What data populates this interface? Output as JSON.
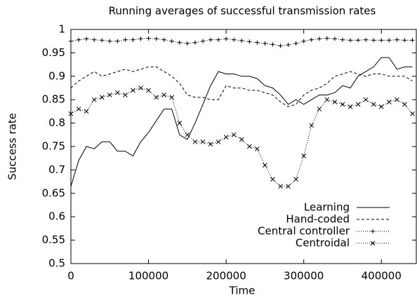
{
  "chart_data": {
    "type": "line",
    "title": "Running averages of successful transmission rates",
    "x_label": "Time",
    "y_label": "Success rate",
    "xlim": [
      0,
      445000
    ],
    "ylim": [
      0.5,
      1
    ],
    "xticks": [
      0,
      100000,
      200000,
      300000,
      400000
    ],
    "yticks": [
      0.5,
      0.55,
      0.6,
      0.65,
      0.7,
      0.75,
      0.8,
      0.85,
      0.9,
      0.95,
      1
    ],
    "legend": "lower right",
    "x": [
      0,
      10000,
      20000,
      30000,
      40000,
      50000,
      60000,
      70000,
      80000,
      90000,
      100000,
      110000,
      120000,
      130000,
      140000,
      150000,
      160000,
      170000,
      180000,
      190000,
      200000,
      210000,
      220000,
      230000,
      240000,
      250000,
      260000,
      270000,
      280000,
      290000,
      300000,
      310000,
      320000,
      330000,
      340000,
      350000,
      360000,
      370000,
      380000,
      390000,
      400000,
      410000,
      420000,
      430000,
      440000
    ],
    "series": [
      {
        "name": "Learning",
        "color": "#000000",
        "dash": "none",
        "marker": "none",
        "values": [
          0.665,
          0.72,
          0.75,
          0.745,
          0.76,
          0.76,
          0.74,
          0.74,
          0.73,
          0.76,
          0.78,
          0.805,
          0.83,
          0.83,
          0.775,
          0.765,
          0.8,
          0.84,
          0.88,
          0.91,
          0.905,
          0.905,
          0.9,
          0.9,
          0.895,
          0.88,
          0.875,
          0.86,
          0.84,
          0.85,
          0.84,
          0.85,
          0.86,
          0.86,
          0.865,
          0.88,
          0.875,
          0.9,
          0.91,
          0.92,
          0.94,
          0.94,
          0.915,
          0.92,
          0.92
        ]
      },
      {
        "name": "Hand-coded",
        "color": "#000000",
        "dash": "4 3",
        "marker": "none",
        "values": [
          0.875,
          0.89,
          0.9,
          0.91,
          0.9,
          0.905,
          0.91,
          0.915,
          0.91,
          0.915,
          0.92,
          0.92,
          0.91,
          0.9,
          0.885,
          0.86,
          0.855,
          0.855,
          0.85,
          0.85,
          0.88,
          0.875,
          0.875,
          0.87,
          0.87,
          0.865,
          0.86,
          0.845,
          0.835,
          0.84,
          0.86,
          0.87,
          0.875,
          0.885,
          0.9,
          0.905,
          0.91,
          0.905,
          0.9,
          0.905,
          0.905,
          0.9,
          0.9,
          0.9,
          0.89
        ]
      },
      {
        "name": "Central controller",
        "color": "#000000",
        "dash": "1 2",
        "marker": "plus",
        "values": [
          0.975,
          0.978,
          0.98,
          0.978,
          0.977,
          0.975,
          0.975,
          0.978,
          0.978,
          0.98,
          0.981,
          0.98,
          0.978,
          0.975,
          0.972,
          0.97,
          0.972,
          0.975,
          0.978,
          0.978,
          0.98,
          0.978,
          0.976,
          0.974,
          0.972,
          0.97,
          0.968,
          0.965,
          0.967,
          0.97,
          0.975,
          0.978,
          0.98,
          0.981,
          0.98,
          0.978,
          0.977,
          0.977,
          0.978,
          0.977,
          0.977,
          0.977,
          0.978,
          0.977,
          0.977
        ]
      },
      {
        "name": "Centroidal",
        "color": "#000000",
        "dash": "1 2",
        "marker": "cross",
        "values": [
          0.82,
          0.83,
          0.825,
          0.85,
          0.855,
          0.86,
          0.865,
          0.86,
          0.87,
          0.875,
          0.87,
          0.855,
          0.86,
          0.855,
          0.8,
          0.775,
          0.76,
          0.76,
          0.755,
          0.76,
          0.77,
          0.775,
          0.765,
          0.75,
          0.745,
          0.71,
          0.68,
          0.665,
          0.665,
          0.68,
          0.73,
          0.795,
          0.83,
          0.85,
          0.845,
          0.84,
          0.835,
          0.84,
          0.85,
          0.84,
          0.835,
          0.845,
          0.85,
          0.84,
          0.82
        ]
      }
    ]
  }
}
